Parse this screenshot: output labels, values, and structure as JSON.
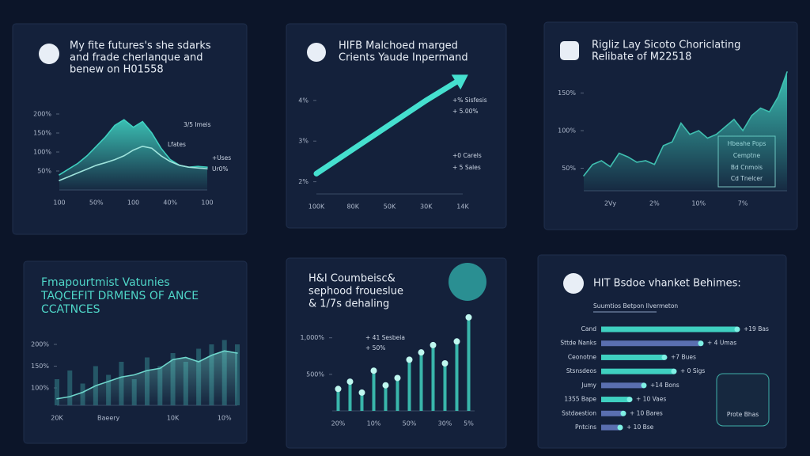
{
  "chart_data": [
    {
      "type": "area",
      "title": [
        "My fite futures's she sdarks",
        "and frade cherlanque and",
        "benew on H01558"
      ],
      "categories": [
        "100",
        null,
        null,
        null,
        "50%",
        null,
        null,
        null,
        "100",
        null,
        null,
        null,
        "40%",
        null,
        null,
        null,
        "100"
      ],
      "series": [
        {
          "kind": "area",
          "color": "#3fd0c0",
          "values": [
            40,
            55,
            70,
            90,
            115,
            140,
            170,
            185,
            165,
            180,
            150,
            110,
            80,
            65,
            60,
            62,
            60
          ]
        },
        {
          "kind": "line",
          "color": "#9fe3dc",
          "values": [
            25,
            35,
            45,
            55,
            65,
            72,
            80,
            90,
            105,
            115,
            110,
            90,
            75,
            65,
            60,
            58,
            56
          ]
        }
      ],
      "ylim": [
        0,
        250
      ],
      "yticks": [
        {
          "value": 50,
          "label": "50%"
        },
        {
          "value": 100,
          "label": "100%"
        },
        {
          "value": 150,
          "label": "150%"
        },
        {
          "value": 200,
          "label": "200%"
        }
      ],
      "annotations": [
        "3/5 Imeis",
        "Lfates",
        "+Uses",
        "Ur0%"
      ]
    },
    {
      "type": "line",
      "title": [
        "HIFB Malchoed marged",
        "Crients Yaude Inpermand"
      ],
      "categories": [
        "100K",
        "80K",
        "50K",
        "30K",
        "14K"
      ],
      "series": [
        {
          "kind": "line",
          "color": "#45e0cf",
          "values": [
            2.2,
            2.8,
            3.4,
            4.0,
            4.55
          ]
        }
      ],
      "ylim": [
        1.7,
        4.6
      ],
      "yticks": [
        {
          "value": 2,
          "label": "2%"
        },
        {
          "value": 3,
          "label": "3%"
        },
        {
          "value": 4,
          "label": "4%"
        }
      ],
      "annotations": [
        "+% Sisfesis",
        "+ 5.00%",
        "+0 Carels",
        "+ 5 Sales"
      ]
    },
    {
      "type": "area",
      "title": [
        "Rigliz Lay Sicoto Choriclating",
        "Relibate of M22518"
      ],
      "categories": [
        null,
        null,
        null,
        "2Vy",
        null,
        null,
        null,
        null,
        "2%",
        null,
        null,
        null,
        null,
        "10%",
        null,
        null,
        null,
        null,
        "7%",
        null,
        null,
        null,
        null,
        null
      ],
      "series": [
        {
          "kind": "area",
          "color": "#3fbfb0",
          "values": [
            40,
            55,
            60,
            52,
            70,
            65,
            58,
            60,
            55,
            80,
            85,
            110,
            95,
            100,
            90,
            95,
            105,
            115,
            100,
            120,
            130,
            125,
            145,
            178
          ]
        }
      ],
      "ylim": [
        20,
        180
      ],
      "yticks": [
        {
          "value": 50,
          "label": "50%"
        },
        {
          "value": 100,
          "label": "100%"
        },
        {
          "value": 150,
          "label": "150%"
        }
      ],
      "annotations": [
        "Hbeahe Pops",
        "Cemptne",
        "Bd Cnmois",
        "Cd Tnelcer"
      ]
    },
    {
      "type": "area",
      "title": [
        "Fmapourtmist Vatunies",
        "TAQCEFIT DRMENS OF ANCE",
        "CCATNCES"
      ],
      "categories": [
        "20K",
        null,
        null,
        null,
        "Baeery",
        null,
        null,
        null,
        null,
        "10K",
        null,
        null,
        null,
        "10%",
        null
      ],
      "series": [
        {
          "kind": "bar",
          "color": "#2c6f7a",
          "values": [
            120,
            140,
            110,
            150,
            130,
            160,
            120,
            170,
            150,
            180,
            160,
            190,
            200,
            210,
            200
          ]
        },
        {
          "kind": "area",
          "color": "#6fd6cc",
          "values": [
            75,
            80,
            90,
            105,
            115,
            125,
            130,
            140,
            145,
            165,
            170,
            160,
            175,
            185,
            180
          ]
        }
      ],
      "ylim": [
        60,
        220
      ],
      "yticks": [
        {
          "value": 100,
          "label": "100%"
        },
        {
          "value": 150,
          "label": "150%"
        },
        {
          "value": 200,
          "label": "200%"
        }
      ]
    },
    {
      "type": "bar",
      "title": [
        "H&I Coumbeisc&",
        "sephood froueslue",
        "& 1/7s dehaling"
      ],
      "categories": [
        "20%",
        null,
        null,
        "10%",
        null,
        null,
        "50%",
        null,
        null,
        "30%",
        null,
        "5%"
      ],
      "values": [
        300,
        400,
        250,
        550,
        350,
        450,
        700,
        800,
        900,
        650,
        950,
        1280
      ],
      "color": "#3fd0c0",
      "ylim": [
        0,
        1300
      ],
      "yticks": [
        {
          "value": 500,
          "label": "500%"
        },
        {
          "value": 1000,
          "label": "1,000%"
        }
      ],
      "annotations": [
        "+ 41 Sesbeia",
        "+ 50%"
      ]
    },
    {
      "type": "hbar",
      "title": [
        "HIT Bsdoe vhanket Behimes:"
      ],
      "subtitle": "Suumtios Betpon Ilvermeton",
      "categories": [
        "Cand",
        "Sttde Nanks",
        "Ceonotne",
        "Stsnsdeos",
        "Jumy",
        "1355 Bape",
        "Sstdaestion",
        "Pntcins"
      ],
      "values": [
        86,
        63,
        40,
        46,
        27,
        18,
        14,
        12
      ],
      "colors": [
        "#3fd0c0",
        "#5a6fb0",
        "#3fd0c0",
        "#3fd0c0",
        "#5a6fb0",
        "#3fd0c0",
        "#5a6fb0",
        "#5a6fb0"
      ],
      "xlim": [
        0,
        100
      ],
      "annotations": [
        "+19 Bas",
        "+ 4 Umas",
        "+7 Bues",
        "+ 0 Sigs",
        "+14 Bons",
        "+ 10 Vaes",
        "+ 10 Bares",
        "+ 10 Bse"
      ],
      "badge": "Prote Bhas"
    }
  ]
}
